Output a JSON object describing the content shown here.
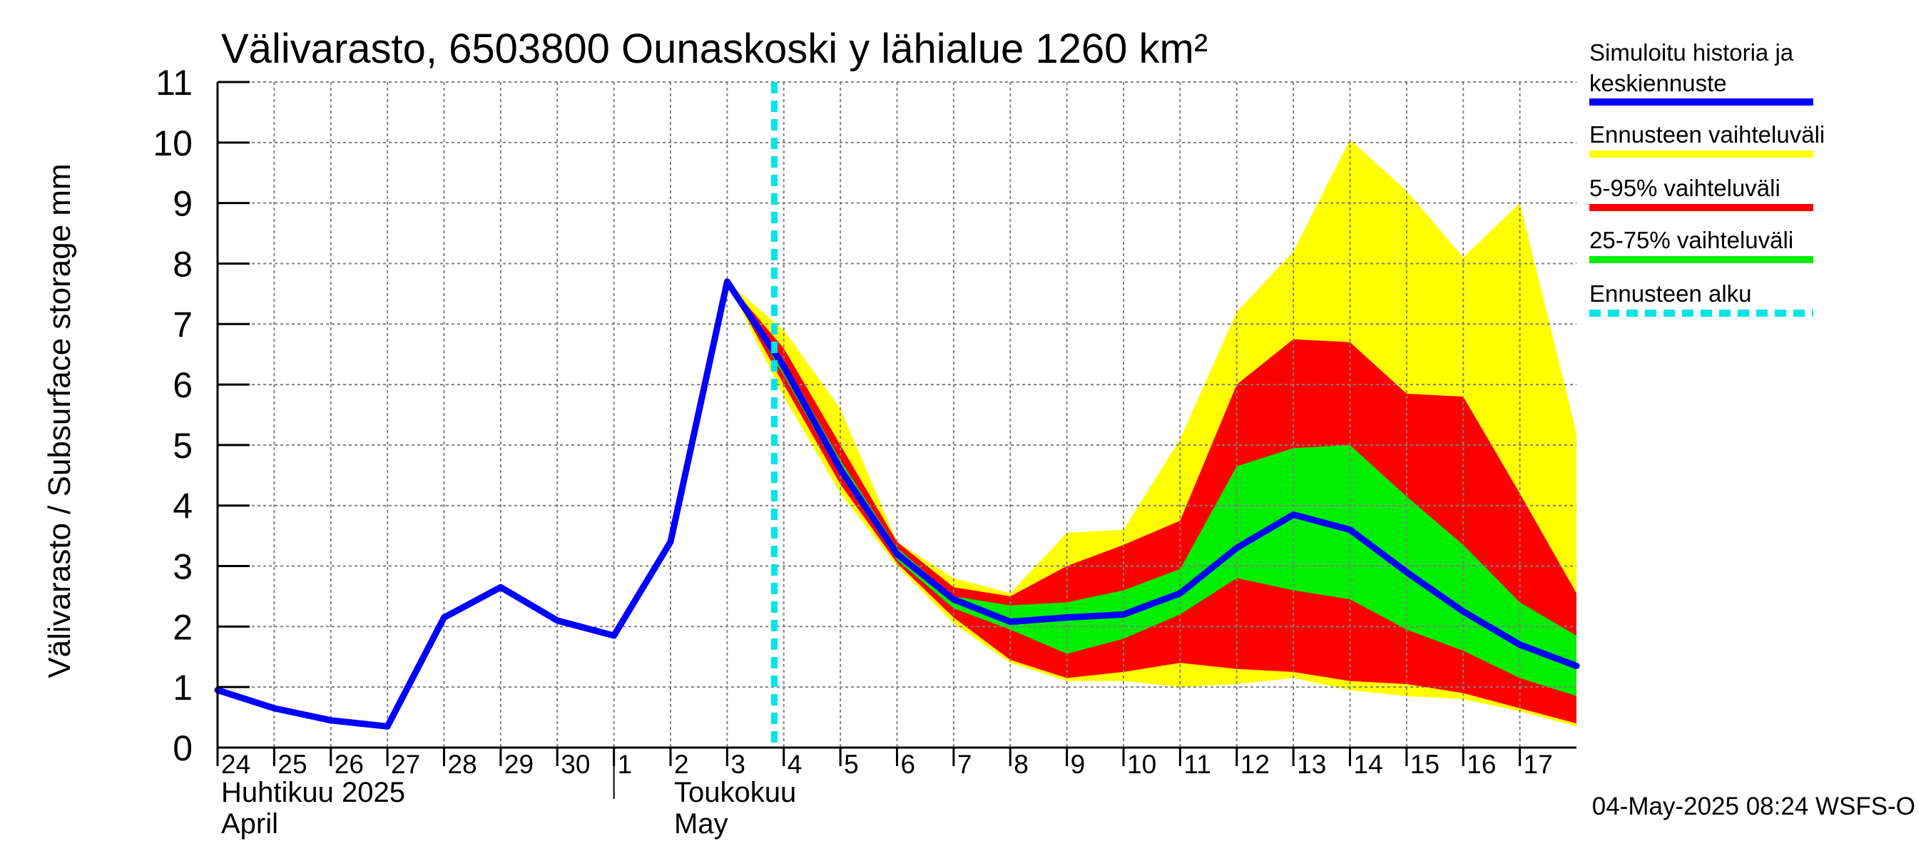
{
  "chart_data": {
    "type": "area",
    "title": "Välivarasto, 6503800 Ounaskoski y lähialue 1260 km²",
    "ylabel": "Välivarasto / Subsurface storage  mm",
    "ylim": [
      0,
      11
    ],
    "yticks": [
      0,
      1,
      2,
      3,
      4,
      5,
      6,
      7,
      8,
      9,
      10,
      11
    ],
    "grid": true,
    "xlim": [
      "2025-04-24",
      "2025-05-18"
    ],
    "x_tick_labels": [
      {
        "date": "2025-04-24",
        "label": "24"
      },
      {
        "date": "2025-04-25",
        "label": "25"
      },
      {
        "date": "2025-04-26",
        "label": "26"
      },
      {
        "date": "2025-04-27",
        "label": "27"
      },
      {
        "date": "2025-04-28",
        "label": "28"
      },
      {
        "date": "2025-04-29",
        "label": "29"
      },
      {
        "date": "2025-04-30",
        "label": "30"
      },
      {
        "date": "2025-05-01",
        "label": "1"
      },
      {
        "date": "2025-05-02",
        "label": "2"
      },
      {
        "date": "2025-05-03",
        "label": "3"
      },
      {
        "date": "2025-05-04",
        "label": "4"
      },
      {
        "date": "2025-05-05",
        "label": "5"
      },
      {
        "date": "2025-05-06",
        "label": "6"
      },
      {
        "date": "2025-05-07",
        "label": "7"
      },
      {
        "date": "2025-05-08",
        "label": "8"
      },
      {
        "date": "2025-05-09",
        "label": "9"
      },
      {
        "date": "2025-05-10",
        "label": "10"
      },
      {
        "date": "2025-05-11",
        "label": "11"
      },
      {
        "date": "2025-05-12",
        "label": "12"
      },
      {
        "date": "2025-05-13",
        "label": "13"
      },
      {
        "date": "2025-05-14",
        "label": "14"
      },
      {
        "date": "2025-05-15",
        "label": "15"
      },
      {
        "date": "2025-05-16",
        "label": "16"
      },
      {
        "date": "2025-05-17",
        "label": "17"
      }
    ],
    "month_labels": [
      {
        "date": "2025-04-24",
        "line1": "Huhtikuu  2025",
        "line2": "April"
      },
      {
        "date": "2025-05-02",
        "line1": "Toukokuu",
        "line2": "May"
      }
    ],
    "month_boundary": "2025-05-01",
    "forecast_start": "2025-05-03T20:00",
    "timestamp": "04-May-2025 08:24 WSFS-O",
    "colors": {
      "history": "#0000ff",
      "range_full": "#ffff00",
      "range_5_95": "#ff0000",
      "range_25_75": "#00ee00",
      "forecast_start": "#00e5e5",
      "grid": "#808080"
    },
    "legend": [
      {
        "key": "history",
        "label": "Simuloitu historia ja keskiennuste",
        "color": "#0000ff",
        "style": "solid"
      },
      {
        "key": "range_full",
        "label": "Ennusteen vaihteluväli",
        "color": "#ffff00",
        "style": "solid"
      },
      {
        "key": "range_5_95",
        "label": "5-95% vaihteluväli",
        "color": "#ff0000",
        "style": "solid"
      },
      {
        "key": "range_25_75",
        "label": "25-75% vaihteluväli",
        "color": "#00ee00",
        "style": "solid"
      },
      {
        "key": "forecast_start",
        "label": "Ennusteen alku",
        "color": "#00e5e5",
        "style": "dashed"
      }
    ],
    "series": [
      {
        "name": "Simuloitu historia ja keskiennuste",
        "points": [
          [
            "2025-04-24T00:00",
            0.95
          ],
          [
            "2025-04-25T00:00",
            0.65
          ],
          [
            "2025-04-26T00:00",
            0.45
          ],
          [
            "2025-04-27T00:00",
            0.35
          ],
          [
            "2025-04-28T00:00",
            2.15
          ],
          [
            "2025-04-29T00:00",
            2.65
          ],
          [
            "2025-04-30T00:00",
            2.1
          ],
          [
            "2025-05-01T00:00",
            1.85
          ],
          [
            "2025-05-02T00:00",
            3.4
          ],
          [
            "2025-05-03T00:00",
            7.7
          ],
          [
            "2025-05-04T00:00",
            6.3
          ],
          [
            "2025-05-05T00:00",
            4.6
          ],
          [
            "2025-05-06T00:00",
            3.2
          ],
          [
            "2025-05-07T00:00",
            2.45
          ],
          [
            "2025-05-08T00:00",
            2.08
          ],
          [
            "2025-05-09T00:00",
            2.15
          ],
          [
            "2025-05-10T00:00",
            2.2
          ],
          [
            "2025-05-11T00:00",
            2.55
          ],
          [
            "2025-05-12T00:00",
            3.3
          ],
          [
            "2025-05-13T00:00",
            3.85
          ],
          [
            "2025-05-14T00:00",
            3.6
          ],
          [
            "2025-05-15T00:00",
            2.9
          ],
          [
            "2025-05-16T00:00",
            2.25
          ],
          [
            "2025-05-17T00:00",
            1.7
          ],
          [
            "2025-05-18T00:00",
            1.35
          ]
        ]
      }
    ],
    "bands": [
      {
        "name": "Ennusteen vaihteluväli",
        "color": "#ffff00",
        "x": [
          "2025-05-03T00:00",
          "2025-05-04T00:00",
          "2025-05-05T00:00",
          "2025-05-06T00:00",
          "2025-05-07T00:00",
          "2025-05-08T00:00",
          "2025-05-09T00:00",
          "2025-05-10T00:00",
          "2025-05-11T00:00",
          "2025-05-12T00:00",
          "2025-05-13T00:00",
          "2025-05-14T00:00",
          "2025-05-15T00:00",
          "2025-05-16T00:00",
          "2025-05-17T00:00",
          "2025-05-18T00:00"
        ],
        "upper": [
          7.7,
          6.9,
          5.6,
          3.4,
          2.8,
          2.55,
          3.55,
          3.6,
          5.1,
          7.2,
          8.2,
          10.05,
          9.2,
          8.1,
          9.0,
          5.2
        ],
        "lower": [
          7.7,
          5.8,
          4.2,
          3.0,
          2.05,
          1.4,
          1.1,
          1.1,
          1.0,
          1.05,
          1.15,
          0.95,
          0.85,
          0.8,
          0.6,
          0.35
        ]
      },
      {
        "name": "5-95% vaihteluväli",
        "color": "#ff0000",
        "x": [
          "2025-05-03T00:00",
          "2025-05-04T00:00",
          "2025-05-05T00:00",
          "2025-05-06T00:00",
          "2025-05-07T00:00",
          "2025-05-08T00:00",
          "2025-05-09T00:00",
          "2025-05-10T00:00",
          "2025-05-11T00:00",
          "2025-05-12T00:00",
          "2025-05-13T00:00",
          "2025-05-14T00:00",
          "2025-05-15T00:00",
          "2025-05-16T00:00",
          "2025-05-17T00:00",
          "2025-05-18T00:00"
        ],
        "upper": [
          7.7,
          6.6,
          5.0,
          3.4,
          2.65,
          2.5,
          3.0,
          3.35,
          3.75,
          6.0,
          6.75,
          6.7,
          5.85,
          5.8,
          4.2,
          2.55
        ],
        "lower": [
          7.7,
          6.0,
          4.35,
          3.05,
          2.15,
          1.45,
          1.15,
          1.25,
          1.4,
          1.3,
          1.25,
          1.1,
          1.05,
          0.9,
          0.65,
          0.4
        ]
      },
      {
        "name": "25-75% vaihteluväli",
        "color": "#00ee00",
        "x": [
          "2025-05-03T00:00",
          "2025-05-04T00:00",
          "2025-05-05T00:00",
          "2025-05-06T00:00",
          "2025-05-07T00:00",
          "2025-05-08T00:00",
          "2025-05-09T00:00",
          "2025-05-10T00:00",
          "2025-05-11T00:00",
          "2025-05-12T00:00",
          "2025-05-13T00:00",
          "2025-05-14T00:00",
          "2025-05-15T00:00",
          "2025-05-16T00:00",
          "2025-05-17T00:00",
          "2025-05-18T00:00"
        ],
        "upper": [
          7.7,
          6.4,
          4.75,
          3.3,
          2.5,
          2.35,
          2.4,
          2.6,
          2.95,
          4.65,
          4.95,
          5.0,
          4.15,
          3.35,
          2.4,
          1.85
        ],
        "lower": [
          7.7,
          6.15,
          4.5,
          3.1,
          2.3,
          1.95,
          1.55,
          1.8,
          2.2,
          2.8,
          2.6,
          2.45,
          1.95,
          1.6,
          1.15,
          0.85
        ]
      }
    ]
  }
}
